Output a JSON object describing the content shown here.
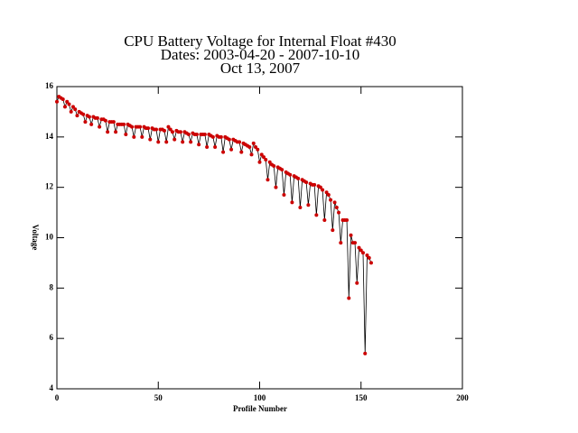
{
  "chart_data": {
    "type": "line",
    "title": [
      "CPU Battery Voltage for Internal Float #430",
      "Dates:  2003-04-20 -  2007-10-10",
      "Oct 13, 2007"
    ],
    "xlabel": "Profile Number",
    "ylabel": "Voltage",
    "xlim": [
      0,
      200
    ],
    "xticks": [
      0,
      50,
      100,
      150,
      200
    ],
    "ylim": [
      4,
      16
    ],
    "yticks": [
      4,
      6,
      8,
      10,
      12,
      14,
      16
    ],
    "line_color": "#000000",
    "marker_color": "#cc0000",
    "x": [
      0,
      1,
      2,
      3,
      4,
      5,
      6,
      7,
      8,
      9,
      10,
      11,
      12,
      13,
      14,
      15,
      16,
      17,
      18,
      19,
      20,
      21,
      22,
      23,
      24,
      25,
      26,
      27,
      28,
      29,
      30,
      31,
      32,
      33,
      34,
      35,
      36,
      37,
      38,
      39,
      40,
      41,
      42,
      43,
      44,
      45,
      46,
      47,
      48,
      49,
      50,
      51,
      52,
      53,
      54,
      55,
      56,
      57,
      58,
      59,
      60,
      61,
      62,
      63,
      64,
      65,
      66,
      67,
      68,
      69,
      70,
      71,
      72,
      73,
      74,
      75,
      76,
      77,
      78,
      79,
      80,
      81,
      82,
      83,
      84,
      85,
      86,
      87,
      88,
      89,
      90,
      91,
      92,
      93,
      94,
      95,
      96,
      97,
      98,
      99,
      100,
      101,
      102,
      103,
      104,
      105,
      106,
      107,
      108,
      109,
      110,
      111,
      112,
      113,
      114,
      115,
      116,
      117,
      118,
      119,
      120,
      121,
      122,
      123,
      124,
      125,
      126,
      127,
      128,
      129,
      130,
      131,
      132,
      133,
      134,
      135,
      136,
      137,
      138,
      139,
      140,
      141,
      142,
      143,
      144,
      145,
      146,
      147,
      148,
      149,
      150,
      151,
      152,
      153,
      154,
      155
    ],
    "values": [
      15.4,
      15.6,
      15.55,
      15.5,
      15.2,
      15.4,
      15.3,
      15.0,
      15.2,
      15.1,
      14.85,
      15.0,
      14.95,
      14.9,
      14.6,
      14.85,
      14.8,
      14.5,
      14.8,
      14.75,
      14.75,
      14.4,
      14.7,
      14.7,
      14.65,
      14.2,
      14.6,
      14.6,
      14.6,
      14.2,
      14.5,
      14.5,
      14.5,
      14.5,
      14.1,
      14.5,
      14.45,
      14.4,
      14.0,
      14.4,
      14.4,
      14.4,
      14.0,
      14.4,
      14.35,
      14.35,
      13.9,
      14.35,
      14.3,
      14.3,
      13.8,
      14.3,
      14.3,
      14.25,
      13.8,
      14.4,
      14.3,
      14.2,
      13.9,
      14.25,
      14.2,
      14.2,
      13.8,
      14.2,
      14.15,
      14.1,
      13.8,
      14.15,
      14.1,
      14.1,
      13.7,
      14.1,
      14.1,
      14.1,
      13.6,
      14.1,
      14.05,
      14.0,
      13.6,
      14.05,
      14.0,
      14.0,
      13.4,
      14.0,
      13.95,
      13.9,
      13.5,
      13.9,
      13.85,
      13.8,
      13.8,
      13.4,
      13.75,
      13.7,
      13.65,
      13.6,
      13.3,
      13.75,
      13.6,
      13.5,
      13.0,
      13.3,
      13.2,
      13.1,
      12.3,
      13.0,
      12.9,
      12.85,
      12.0,
      12.8,
      12.75,
      12.7,
      11.7,
      12.6,
      12.55,
      12.5,
      11.4,
      12.45,
      12.4,
      12.35,
      11.2,
      12.3,
      12.25,
      12.2,
      11.3,
      12.15,
      12.1,
      12.1,
      10.9,
      12.05,
      12.0,
      11.9,
      10.7,
      11.8,
      11.7,
      11.5,
      10.3,
      11.4,
      11.2,
      11.0,
      9.8,
      10.7,
      10.7,
      10.7,
      7.6,
      10.1,
      9.8,
      9.8,
      8.2,
      9.6,
      9.5,
      9.4,
      5.4,
      9.3,
      9.2,
      9.0
    ]
  }
}
